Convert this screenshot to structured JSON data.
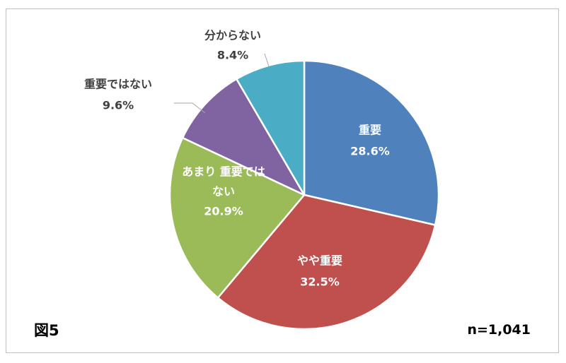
{
  "figure_label": "図5",
  "sample_size": "n=1,041",
  "chart_data": {
    "type": "pie",
    "title": "",
    "start_angle_deg": 0,
    "direction": "clockwise",
    "slices": [
      {
        "label": "重要",
        "value": 28.6,
        "display": "28.6%",
        "color": "#4F81BD",
        "label_position": "inside",
        "label_color": "#ffffff"
      },
      {
        "label": "やや重要",
        "value": 32.5,
        "display": "32.5%",
        "color": "#C0504D",
        "label_position": "inside",
        "label_color": "#ffffff"
      },
      {
        "label_lines": [
          "あまり 重要では",
          "ない"
        ],
        "value": 20.9,
        "display": "20.9%",
        "color": "#9BBB59",
        "label_position": "inside",
        "label_color": "#ffffff"
      },
      {
        "label": "重要ではない",
        "value": 9.6,
        "display": "9.6%",
        "color": "#8064A2",
        "label_position": "outside",
        "label_color": "#404040"
      },
      {
        "label": "分からない",
        "value": 8.4,
        "display": "8.4%",
        "color": "#4BACC6",
        "label_position": "outside",
        "label_color": "#404040"
      }
    ]
  }
}
